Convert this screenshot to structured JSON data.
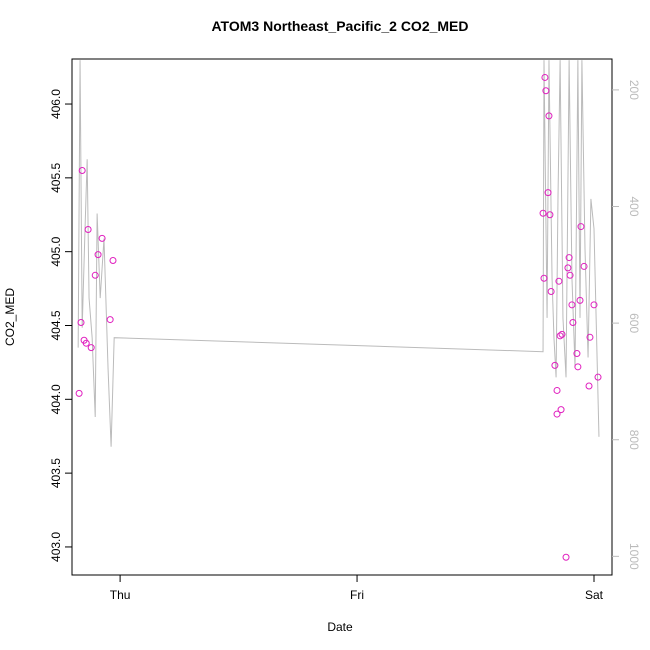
{
  "chart_data": {
    "type": "scatter",
    "title": "ATOM3 Northeast_Pacific_2 CO2_MED",
    "x_label": "Date",
    "y_label": "CO2_MED",
    "xlim": [
      -0.203,
      2.076
    ],
    "xticks": [
      {
        "value": 0,
        "label": "Thu"
      },
      {
        "value": 1,
        "label": "Fri"
      },
      {
        "value": 2,
        "label": "Sat"
      }
    ],
    "ylim": [
      402.81,
      406.305
    ],
    "yticks": [
      {
        "value": 403,
        "label": "403.0"
      },
      {
        "value": 403.5,
        "label": "403.5"
      },
      {
        "value": 404,
        "label": "404.0"
      },
      {
        "value": 404.5,
        "label": "404.5"
      },
      {
        "value": 405,
        "label": "405.0"
      },
      {
        "value": 405.5,
        "label": "405.5"
      },
      {
        "value": 406,
        "label": "406.0"
      }
    ],
    "y2lim": [
      1032,
      147
    ],
    "y2ticks": [
      200,
      400,
      600,
      800,
      1000
    ],
    "series": [
      {
        "color": "#e01fbf",
        "x": [
          -0.173,
          -0.165,
          -0.16,
          -0.152,
          -0.143,
          -0.135,
          -0.122,
          -0.105,
          -0.093,
          -0.076,
          -0.042,
          -0.03,
          1.785,
          1.789,
          1.793,
          1.797,
          1.806,
          1.81,
          1.814,
          1.819,
          1.835,
          1.844,
          1.844,
          1.852,
          1.857,
          1.861,
          1.865,
          1.882,
          1.89,
          1.895,
          1.899,
          1.907,
          1.911,
          1.928,
          1.932,
          1.941,
          1.945,
          1.958,
          1.979,
          1.983,
          2.0,
          2.017
        ],
        "values": [
          404.04,
          404.52,
          405.55,
          404.4,
          404.38,
          405.15,
          404.35,
          404.84,
          404.98,
          405.09,
          404.54,
          404.94,
          405.26,
          404.82,
          406.18,
          406.09,
          405.4,
          405.92,
          405.25,
          404.73,
          404.23,
          404.06,
          403.9,
          404.8,
          404.43,
          403.93,
          404.44,
          402.93,
          404.89,
          404.96,
          404.84,
          404.64,
          404.52,
          404.31,
          404.22,
          404.67,
          405.17,
          404.9,
          404.09,
          404.42,
          404.64,
          404.15
        ]
      },
      {
        "type": "line",
        "axis": "y2",
        "color": "#bbbbbb",
        "x": [
          -0.177,
          -0.169,
          -0.16,
          -0.148,
          -0.139,
          -0.131,
          -0.118,
          -0.105,
          -0.097,
          -0.084,
          -0.068,
          -0.051,
          -0.038,
          -0.025,
          1.785,
          1.789,
          1.802,
          1.81,
          1.823,
          1.831,
          1.84,
          1.848,
          1.857,
          1.869,
          1.882,
          1.895,
          1.907,
          1.92,
          1.932,
          1.941,
          1.949,
          1.962,
          1.975,
          1.987,
          2.0,
          2.021
        ],
        "values": [
          642,
          149,
          608,
          438,
          319,
          557,
          625,
          761,
          412,
          557,
          455,
          676,
          812,
          625,
          649,
          149,
          591,
          149,
          523,
          625,
          693,
          387,
          149,
          591,
          693,
          149,
          523,
          676,
          149,
          591,
          149,
          472,
          659,
          387,
          438,
          795
        ]
      }
    ]
  }
}
